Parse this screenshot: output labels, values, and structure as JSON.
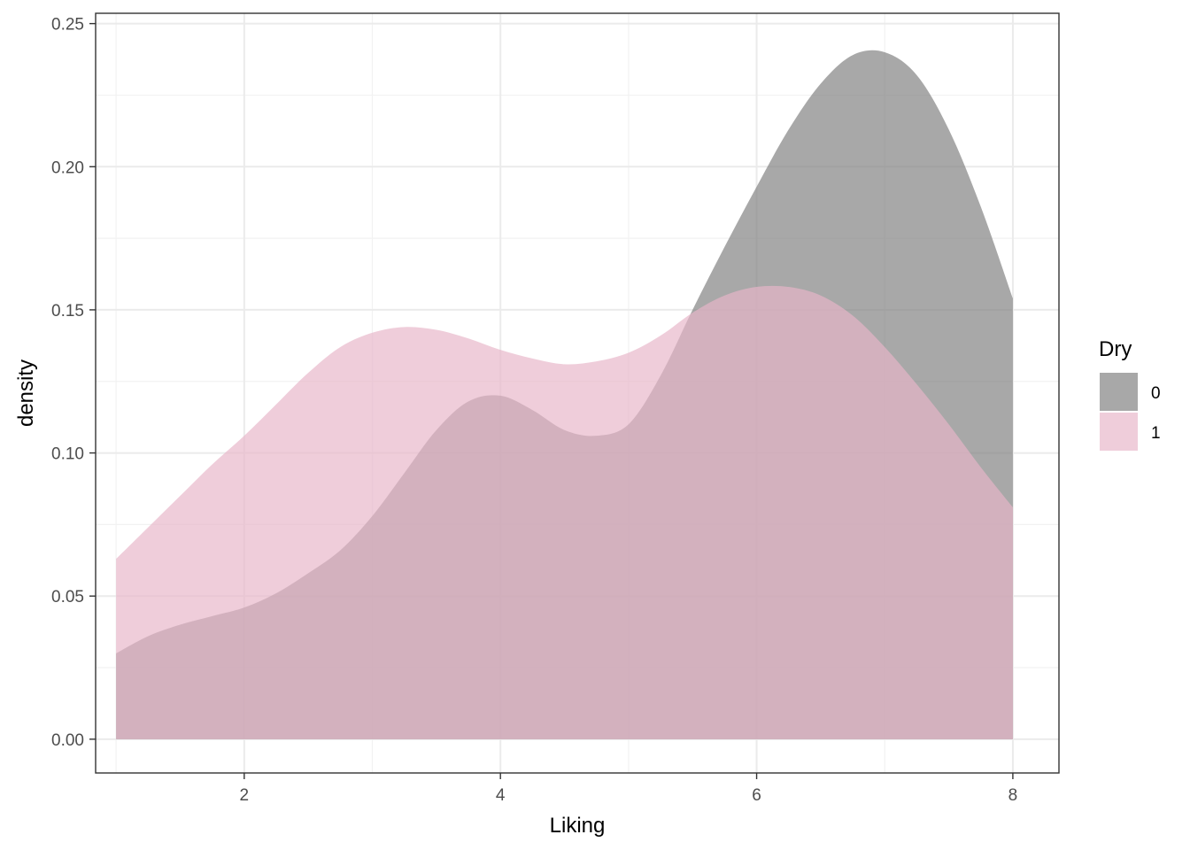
{
  "chart_data": {
    "type": "area",
    "xlabel": "Liking",
    "ylabel": "density",
    "xlim": [
      0.84,
      8.36
    ],
    "ylim": [
      -0.0118,
      0.2536
    ],
    "x_ticks": [
      {
        "value": 2,
        "label": "2"
      },
      {
        "value": 4,
        "label": "4"
      },
      {
        "value": 6,
        "label": "6"
      },
      {
        "value": 8,
        "label": "8"
      }
    ],
    "y_ticks": [
      {
        "value": 0.0,
        "label": "0.00"
      },
      {
        "value": 0.05,
        "label": "0.05"
      },
      {
        "value": 0.1,
        "label": "0.10"
      },
      {
        "value": 0.15,
        "label": "0.15"
      },
      {
        "value": 0.2,
        "label": "0.20"
      },
      {
        "value": 0.25,
        "label": "0.25"
      }
    ],
    "grid": true,
    "legend": {
      "title": "Dry",
      "position": "right"
    },
    "series": [
      {
        "name": "0",
        "color": "#7f7f7f",
        "opacity": 0.68,
        "x": [
          1.0,
          1.25,
          1.5,
          1.75,
          2.0,
          2.25,
          2.5,
          2.75,
          3.0,
          3.25,
          3.5,
          3.75,
          4.0,
          4.25,
          4.5,
          4.75,
          5.0,
          5.25,
          5.5,
          5.75,
          6.0,
          6.25,
          6.5,
          6.75,
          7.0,
          7.25,
          7.5,
          7.75,
          8.0
        ],
        "y": [
          0.03,
          0.036,
          0.04,
          0.043,
          0.046,
          0.051,
          0.058,
          0.066,
          0.078,
          0.093,
          0.108,
          0.118,
          0.12,
          0.115,
          0.108,
          0.106,
          0.11,
          0.127,
          0.15,
          0.172,
          0.193,
          0.213,
          0.229,
          0.239,
          0.24,
          0.232,
          0.213,
          0.186,
          0.154
        ]
      },
      {
        "name": "1",
        "color": "#e7b5c8",
        "opacity": 0.68,
        "x": [
          1.0,
          1.25,
          1.5,
          1.75,
          2.0,
          2.25,
          2.5,
          2.75,
          3.0,
          3.25,
          3.5,
          3.75,
          4.0,
          4.25,
          4.5,
          4.75,
          5.0,
          5.25,
          5.5,
          5.75,
          6.0,
          6.25,
          6.5,
          6.75,
          7.0,
          7.25,
          7.5,
          7.75,
          8.0
        ],
        "y": [
          0.063,
          0.074,
          0.085,
          0.096,
          0.106,
          0.117,
          0.128,
          0.137,
          0.142,
          0.144,
          0.143,
          0.14,
          0.136,
          0.133,
          0.131,
          0.132,
          0.135,
          0.141,
          0.149,
          0.155,
          0.158,
          0.158,
          0.155,
          0.148,
          0.137,
          0.124,
          0.11,
          0.095,
          0.081
        ]
      }
    ]
  }
}
